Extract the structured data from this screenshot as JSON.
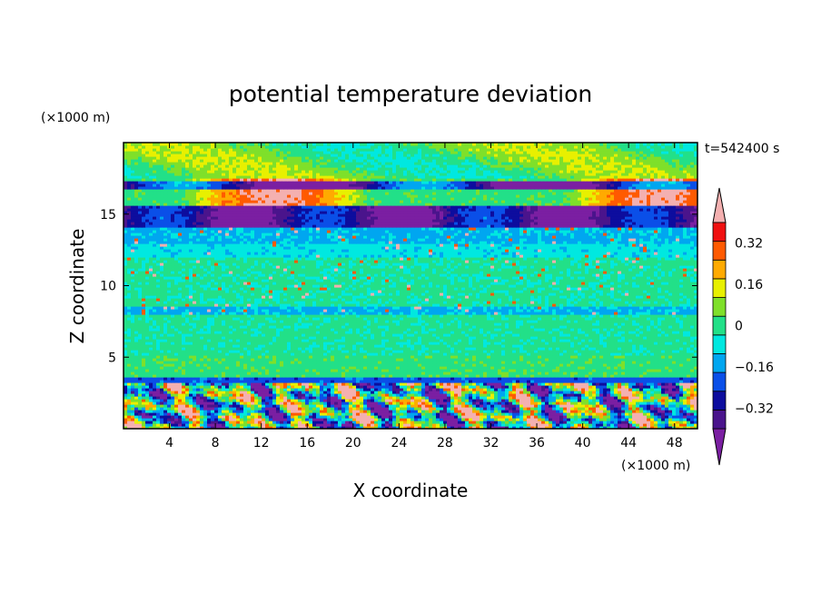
{
  "chart_data": {
    "type": "heatmap",
    "title": "potential temperature deviation",
    "xlabel": "X coordinate",
    "ylabel": "Z coordinate",
    "x_unit": "(×1000 m)",
    "y_unit": "(×1000 m)",
    "time_label": "t=542400 s",
    "xlim": [
      0,
      50
    ],
    "ylim": [
      0,
      20
    ],
    "x_ticks": [
      4,
      8,
      12,
      16,
      20,
      24,
      28,
      32,
      36,
      40,
      44,
      48
    ],
    "y_ticks": [
      5,
      10,
      15
    ],
    "colorbar": {
      "levels": [
        -0.4,
        -0.32,
        -0.24,
        -0.16,
        -0.08,
        0,
        0.08,
        0.16,
        0.24,
        0.32,
        0.4
      ],
      "labels": [
        "−0.32",
        "−0.16",
        "0",
        "0.16",
        "0.32"
      ],
      "label_values": [
        -0.32,
        -0.16,
        0,
        0.16,
        0.32
      ],
      "colors": [
        "#7b1fa2",
        "#4a148c",
        "#0d0d9e",
        "#0a4fe8",
        "#00a6f0",
        "#00e8e0",
        "#22e088",
        "#7fe02a",
        "#e8f000",
        "#ffaa00",
        "#ff5a00",
        "#f01010",
        "#f4b0b0"
      ],
      "extend": "both"
    },
    "bands": [
      {
        "z": [
          0,
          3.2
        ],
        "pattern": "turbulent boundary layer, mixed -0.4..0.4"
      },
      {
        "z": [
          3.2,
          3.6
        ],
        "value": -0.2
      },
      {
        "z": [
          3.6,
          5.2
        ],
        "value": 0.05
      },
      {
        "z": [
          5.2,
          8.0
        ],
        "value": 0.02
      },
      {
        "z": [
          8.0,
          8.5
        ],
        "value": -0.1
      },
      {
        "z": [
          8.5,
          12.0
        ],
        "value": 0.02
      },
      {
        "z": [
          12.0,
          13.0
        ],
        "value": -0.05
      },
      {
        "z": [
          13.0,
          14.0
        ],
        "value": -0.1
      },
      {
        "z": [
          14.0,
          15.6
        ],
        "value": -0.35
      },
      {
        "z": [
          15.6,
          17.5
        ],
        "value": 0.35
      },
      {
        "z": [
          17.5,
          20.0
        ],
        "value": 0.08
      }
    ]
  }
}
